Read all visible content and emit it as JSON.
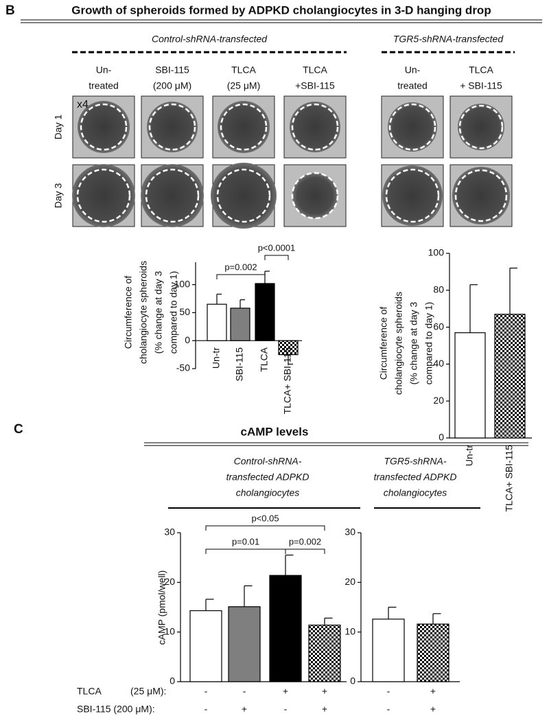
{
  "panel_b": {
    "label": "B",
    "title": "Growth of spheroids formed by ADPKD cholangiocytes in 3-D hanging drop",
    "groups": [
      {
        "title": "Control-shRNA-transfected",
        "columns": [
          [
            "Un-",
            "treated"
          ],
          [
            "SBI-115",
            "(200 μM)"
          ],
          [
            "TLCA",
            "(25 μM)"
          ],
          [
            "TLCA",
            "+SBI-115"
          ]
        ]
      },
      {
        "title": "TGR5-shRNA-transfected",
        "columns": [
          [
            "Un-",
            "treated"
          ],
          [
            "TLCA",
            "+ SBI-115"
          ]
        ]
      }
    ],
    "rows": [
      "Day 1",
      "Day 3"
    ],
    "magnification": "x4"
  },
  "panel_c": {
    "label": "C",
    "title": "cAMP levels",
    "groups": [
      [
        "Control-shRNA-",
        "transfected ADPKD",
        "cholangiocytes"
      ],
      [
        "TGR5-shRNA-",
        "transfected ADPKD",
        "cholangiocytes"
      ]
    ],
    "treatments": [
      [
        "TLCA",
        "(25 μM):"
      ],
      [
        "SBI-115 (200 μM):"
      ]
    ]
  },
  "chart_data": [
    {
      "type": "bar",
      "y_label": [
        "Circumference of",
        "cholangiocyte spheroids",
        "(% change at day 3",
        "compared to day 1)"
      ],
      "categories": [
        "Un-tr",
        "SBI-115",
        "TLCA",
        "TLCA+ SBI-115"
      ],
      "values": [
        65,
        58,
        102,
        -25
      ],
      "errors": [
        18,
        15,
        22,
        17
      ],
      "fills": [
        "#ffffff",
        "#7f7f7f",
        "#000000",
        "checkerboard"
      ],
      "ylim": [
        -50,
        140
      ],
      "yticks": [
        -50,
        0,
        50,
        100
      ],
      "brackets": [
        {
          "label": "p=0.002",
          "from": 0,
          "to": 2
        },
        {
          "label": "p<0.0001",
          "from": 2,
          "to": 3
        }
      ]
    },
    {
      "type": "bar",
      "y_label": [
        "Circumference of",
        "cholangiocyte spheroids",
        "(% change at day 3",
        "compared to day 1)"
      ],
      "categories": [
        "Un-tr",
        "TLCA+ SBI-115"
      ],
      "values": [
        57,
        67
      ],
      "errors": [
        26,
        25
      ],
      "fills": [
        "#ffffff",
        "checkerboard"
      ],
      "ylim": [
        0,
        100
      ],
      "yticks": [
        0,
        20,
        40,
        60,
        80,
        100
      ]
    },
    {
      "type": "bar",
      "y_label": [
        "cAMP (pmol/well)"
      ],
      "values": [
        14.3,
        15.1,
        21.4,
        11.4
      ],
      "errors": [
        2.3,
        4.2,
        4.1,
        1.4
      ],
      "fills": [
        "#ffffff",
        "#7f7f7f",
        "#000000",
        "checkerboard"
      ],
      "signs": [
        [
          "-",
          "-",
          "+",
          "+"
        ],
        [
          "-",
          "+",
          "-",
          "+"
        ]
      ],
      "ylim": [
        0,
        30
      ],
      "yticks": [
        0,
        10,
        20,
        30
      ],
      "brackets": [
        {
          "label": "p<0.05",
          "from": 0,
          "to": 3
        },
        {
          "label": "p=0.01",
          "from": 0,
          "to": 2
        },
        {
          "label": "p=0.002",
          "from": 2,
          "to": 3
        }
      ]
    },
    {
      "type": "bar",
      "values": [
        12.6,
        11.6
      ],
      "errors": [
        2.4,
        2.1
      ],
      "fills": [
        "#ffffff",
        "checkerboard"
      ],
      "signs": [
        [
          "-",
          "+"
        ],
        [
          "-",
          "+"
        ]
      ],
      "ylim": [
        0,
        30
      ],
      "yticks": [
        0,
        10,
        20,
        30
      ]
    }
  ]
}
